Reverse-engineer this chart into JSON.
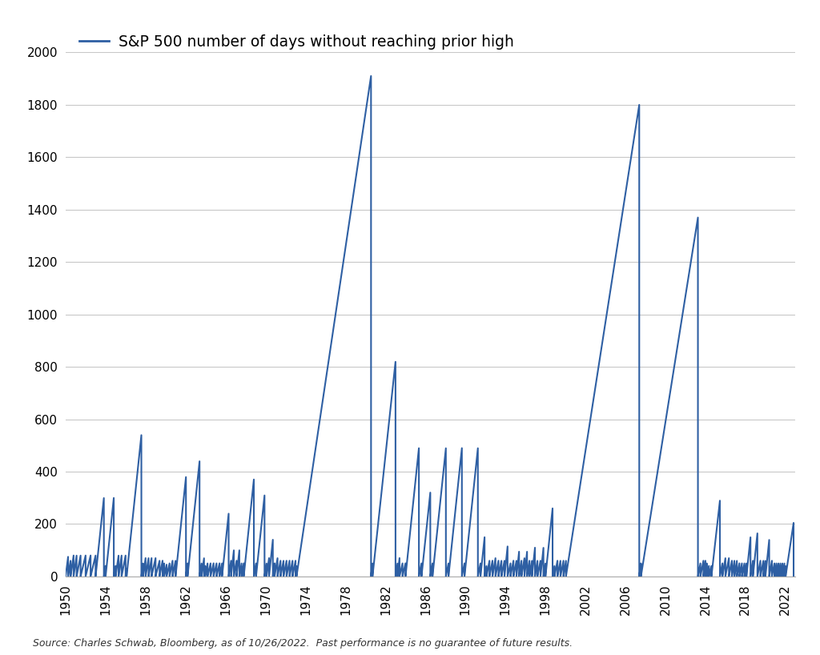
{
  "title": "S&P 500 number of days without reaching prior high",
  "line_color": "#2e5fa3",
  "line_width": 1.5,
  "background_color": "#ffffff",
  "source_text": "Source: Charles Schwab, Bloomberg, as of 10/26/2022.  Past performance is no guarantee of future results.",
  "ylim": [
    0,
    2000
  ],
  "yticks": [
    0,
    200,
    400,
    600,
    800,
    1000,
    1200,
    1400,
    1600,
    1800,
    2000
  ],
  "xtick_years": [
    1950,
    1954,
    1958,
    1962,
    1966,
    1970,
    1974,
    1978,
    1982,
    1986,
    1990,
    1994,
    1998,
    2002,
    2006,
    2010,
    2014,
    2018,
    2022
  ],
  "grid_color": "#c8c8c8",
  "grid_linewidth": 0.8,
  "xlim_start": 1950,
  "xlim_end": 2023
}
